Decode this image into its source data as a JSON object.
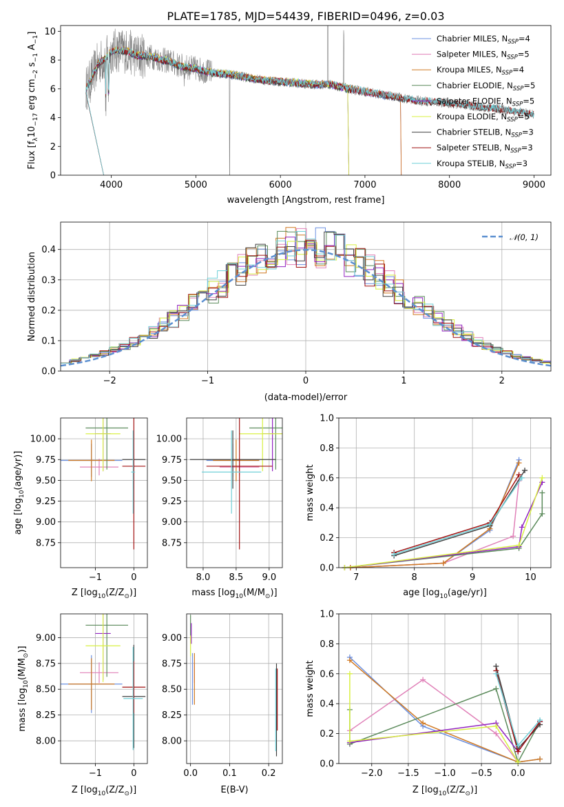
{
  "figure_title": "PLATE=1785, MJD=54439, FIBERID=0496, z=0.03",
  "colors": {
    "Chabrier MILES": "#6a8fe0",
    "Salpeter MILES": "#e080b8",
    "Kroupa MILES": "#d07820",
    "Chabrier ELODIE": "#5a8a5a",
    "Salpeter ELODIE": "#9020c0",
    "Kroupa ELODIE": "#d8f040",
    "Chabrier STELIB": "#404040",
    "Salpeter STELIB": "#a01010",
    "Kroupa STELIB": "#70d0d8",
    "data": "#808080",
    "gaussian": "#5b8fd0"
  },
  "chart_data": [
    {
      "id": "spectrum",
      "type": "line",
      "title": "PLATE=1785, MJD=54439, FIBERID=0496, z=0.03",
      "xlabel": "wavelength [Angstrom, rest frame]",
      "ylabel_parts": [
        "Flux [f",
        "λ",
        "10",
        "−17",
        " erg cm",
        "−2",
        " s",
        "−1",
        " A",
        "−1",
        "]"
      ],
      "xlim": [
        3400,
        9200
      ],
      "ylim": [
        0,
        10.4
      ],
      "xticks": [
        4000,
        5000,
        6000,
        7000,
        8000,
        9000
      ],
      "xtick_labels": [
        "4000",
        "5000",
        "6000",
        "7000",
        "8000",
        "9000"
      ],
      "yticks": [
        0,
        2,
        4,
        6,
        8,
        10
      ],
      "ytick_labels": [
        "0",
        "2",
        "4",
        "6",
        "8",
        "10"
      ],
      "grid": false,
      "legend_position": "upper right",
      "legend": [
        {
          "name": "Chabrier MILES",
          "nssp": "4",
          "sub": "SSP"
        },
        {
          "name": "Salpeter MILES",
          "nssp": "5",
          "sub": "SSP"
        },
        {
          "name": "Kroupa MILES",
          "nssp": "4",
          "sub": "SSP"
        },
        {
          "name": "Chabrier ELODIE",
          "nssp": "5",
          "sub": "SSP"
        },
        {
          "name": "Salpeter ELODIE",
          "nssp": "5",
          "sub": "SSP"
        },
        {
          "name": "Kroupa ELODIE",
          "nssp": "5",
          "sub": "SSP"
        },
        {
          "name": "Chabrier STELIB",
          "nssp": "3",
          "sub": "SSP"
        },
        {
          "name": "Salpeter STELIB",
          "nssp": "3",
          "sub": "SSP"
        },
        {
          "name": "Kroupa STELIB",
          "nssp": "3",
          "sub": "SSP"
        }
      ],
      "continuum": {
        "x": [
          3700,
          3750,
          3800,
          3850,
          3900,
          3950,
          4000,
          4100,
          4200,
          4300,
          4400,
          4500,
          4600,
          4700,
          4800,
          4900,
          5000,
          5200,
          5400,
          5600,
          5800,
          6000,
          6200,
          6400,
          6600,
          6800,
          7000,
          7200,
          7400,
          7600,
          7800,
          8000,
          8200,
          8400,
          8600,
          8800,
          9000
        ],
        "y": [
          6.0,
          6.5,
          7.2,
          7.8,
          8.0,
          8.2,
          8.6,
          8.7,
          8.6,
          8.3,
          8.3,
          8.2,
          8.0,
          7.9,
          7.6,
          7.5,
          7.4,
          7.1,
          7.0,
          6.8,
          6.6,
          6.5,
          6.4,
          6.3,
          6.3,
          6.0,
          5.8,
          5.6,
          5.4,
          5.2,
          5.1,
          5.0,
          4.9,
          4.7,
          4.6,
          4.4,
          4.2
        ]
      },
      "model_ends": {
        "MILES_end": 7420,
        "ELODIE_end": 6800,
        "STELIB_end": 9000,
        "ELODIE_start": 3700,
        "STELIB_start": 3700
      }
    },
    {
      "id": "residual_hist",
      "type": "bar",
      "xlabel": "(data-model)/error",
      "ylabel": "Normed distribution",
      "xlim": [
        -2.5,
        2.5
      ],
      "ylim": [
        0,
        0.49
      ],
      "xticks": [
        -2,
        -1,
        0,
        1,
        2
      ],
      "xtick_labels": [
        "−2",
        "−1",
        "0",
        "1",
        "2"
      ],
      "yticks": [
        0.0,
        0.1,
        0.2,
        0.3,
        0.4
      ],
      "ytick_labels": [
        "0.0",
        "0.1",
        "0.2",
        "0.3",
        "0.4"
      ],
      "grid": true,
      "legend_position": "upper right",
      "legend_label": "𝒩(0, 1)",
      "bin_width": 0.1,
      "bin_start": -2.5,
      "series": [
        {
          "name": "Chabrier MILES",
          "offset": 0.0
        },
        {
          "name": "Salpeter MILES",
          "offset": 0.03
        },
        {
          "name": "Kroupa MILES",
          "offset": -0.02
        },
        {
          "name": "Chabrier ELODIE",
          "offset": 0.05
        },
        {
          "name": "Salpeter ELODIE",
          "offset": -0.04
        },
        {
          "name": "Kroupa ELODIE",
          "offset": 0.07
        },
        {
          "name": "Chabrier STELIB",
          "offset": -0.06
        },
        {
          "name": "Salpeter STELIB",
          "offset": 0.02
        },
        {
          "name": "Kroupa STELIB",
          "offset": -0.01
        }
      ]
    },
    {
      "id": "age_vs_Z",
      "type": "scatter",
      "xlabel_parts": [
        "Z [log",
        "10",
        "(Z/Z",
        "⊙",
        ")]"
      ],
      "ylabel_parts": [
        "age  [log",
        "10",
        "(age/yr)]"
      ],
      "xlim": [
        -1.9,
        0.35
      ],
      "ylim": [
        8.45,
        10.25
      ],
      "xticks": [
        -1,
        0
      ],
      "xtick_labels": [
        "−1",
        "0"
      ],
      "yticks": [
        8.75,
        9.0,
        9.25,
        9.5,
        9.75,
        10.0
      ],
      "ytick_labels": [
        "8.75",
        "9.00",
        "9.25",
        "9.50",
        "9.75",
        "10.00"
      ],
      "grid": true,
      "points": [
        {
          "name": "Chabrier MILES",
          "x": -1.1,
          "xerr": 0.8,
          "y": 9.74,
          "yerr": 0.2
        },
        {
          "name": "Salpeter MILES",
          "x": -0.9,
          "xerr": 0.5,
          "y": 9.66,
          "yerr": 0.1
        },
        {
          "name": "Kroupa MILES",
          "x": -1.1,
          "xerr": 0.6,
          "y": 9.74,
          "yerr": 0.25
        },
        {
          "name": "Chabrier ELODIE",
          "x": -0.7,
          "xerr": 0.55,
          "y": 10.13,
          "yerr": 0.5
        },
        {
          "name": "Salpeter ELODIE",
          "x": -0.8,
          "xerr": 0.2,
          "y": 10.06,
          "yerr": 0.45
        },
        {
          "name": "Kroupa ELODIE",
          "x": -0.8,
          "xerr": 0.45,
          "y": 10.06,
          "yerr": 0.45
        },
        {
          "name": "Chabrier STELIB",
          "x": 0.0,
          "xerr": 0.3,
          "y": 9.75,
          "yerr": 0.35
        },
        {
          "name": "Salpeter STELIB",
          "x": 0.0,
          "xerr": 0.3,
          "y": 9.67,
          "yerr": 1.0
        },
        {
          "name": "Kroupa STELIB",
          "x": -0.02,
          "xerr": 0.05,
          "y": 9.6,
          "yerr": 0.5
        }
      ]
    },
    {
      "id": "age_vs_mass",
      "type": "scatter",
      "xlabel_parts": [
        "mass [log",
        "10",
        "(M/M",
        "⊙",
        ")]"
      ],
      "xlim": [
        7.75,
        9.2
      ],
      "ylim": [
        8.45,
        10.25
      ],
      "xticks": [
        8.0,
        8.5,
        9.0
      ],
      "xtick_labels": [
        "8.0",
        "8.5",
        "9.0"
      ],
      "yticks": [
        8.75,
        9.0,
        9.25,
        9.5,
        9.75,
        10.0
      ],
      "ytick_labels": [
        "8.75",
        "9.00",
        "9.25",
        "9.50",
        "9.75",
        "10.00"
      ],
      "grid": true,
      "points": [
        {
          "name": "Chabrier MILES",
          "x": 8.45,
          "xerr": 0.4,
          "y": 9.74,
          "yerr": 0.2
        },
        {
          "name": "Salpeter MILES",
          "x": 8.55,
          "xerr": 0.3,
          "y": 9.66,
          "yerr": 0.1
        },
        {
          "name": "Kroupa MILES",
          "x": 8.5,
          "xerr": 0.35,
          "y": 9.74,
          "yerr": 0.25
        },
        {
          "name": "Chabrier ELODIE",
          "x": 9.1,
          "xerr": 0.4,
          "y": 10.13,
          "yerr": 0.5
        },
        {
          "name": "Salpeter ELODIE",
          "x": 9.05,
          "xerr": 0.15,
          "y": 10.06,
          "yerr": 0.45
        },
        {
          "name": "Kroupa ELODIE",
          "x": 8.9,
          "xerr": 0.35,
          "y": 10.06,
          "yerr": 0.45
        },
        {
          "name": "Chabrier STELIB",
          "x": 8.45,
          "xerr": 0.65,
          "y": 9.75,
          "yerr": 0.35
        },
        {
          "name": "Salpeter STELIB",
          "x": 8.55,
          "xerr": 0.5,
          "y": 9.67,
          "yerr": 1.0
        },
        {
          "name": "Kroupa STELIB",
          "x": 8.43,
          "xerr": 0.45,
          "y": 9.6,
          "yerr": 0.5
        }
      ]
    },
    {
      "id": "weight_vs_age",
      "type": "line",
      "xlabel_parts": [
        "age  [log",
        "10",
        "(age/yr)]"
      ],
      "ylabel": "mass weight",
      "xlim": [
        6.7,
        10.35
      ],
      "ylim": [
        0,
        1.0
      ],
      "xticks": [
        7,
        8,
        9,
        10
      ],
      "xtick_labels": [
        "7",
        "8",
        "9",
        "10"
      ],
      "yticks": [
        0.0,
        0.2,
        0.4,
        0.6,
        0.8,
        1.0
      ],
      "ytick_labels": [
        "0.0",
        "0.2",
        "0.4",
        "0.6",
        "0.8",
        "1.0"
      ],
      "grid": true,
      "series": [
        {
          "name": "Chabrier MILES",
          "x": [
            6.9,
            8.5,
            9.3,
            9.8
          ],
          "y": [
            0.0,
            0.03,
            0.25,
            0.72
          ]
        },
        {
          "name": "Salpeter MILES",
          "x": [
            6.9,
            8.5,
            9.7,
            9.8
          ],
          "y": [
            0.0,
            0.03,
            0.21,
            0.58
          ]
        },
        {
          "name": "Kroupa MILES",
          "x": [
            6.9,
            8.5,
            9.3,
            9.8
          ],
          "y": [
            0.0,
            0.03,
            0.26,
            0.7
          ]
        },
        {
          "name": "Chabrier ELODIE",
          "x": [
            6.8,
            9.8,
            10.2,
            10.2
          ],
          "y": [
            0.0,
            0.13,
            0.36,
            0.5
          ]
        },
        {
          "name": "Salpeter ELODIE",
          "x": [
            6.8,
            9.8,
            9.85,
            10.2
          ],
          "y": [
            0.0,
            0.14,
            0.27,
            0.57
          ]
        },
        {
          "name": "Kroupa ELODIE",
          "x": [
            6.8,
            9.8,
            10.2
          ],
          "y": [
            0.0,
            0.15,
            0.6
          ]
        },
        {
          "name": "Chabrier STELIB",
          "x": [
            7.65,
            9.3,
            9.9
          ],
          "y": [
            0.08,
            0.28,
            0.65
          ]
        },
        {
          "name": "Salpeter STELIB",
          "x": [
            7.65,
            9.3,
            9.8
          ],
          "y": [
            0.1,
            0.3,
            0.62
          ]
        },
        {
          "name": "Kroupa STELIB",
          "x": [
            7.65,
            9.3,
            9.85
          ],
          "y": [
            0.09,
            0.29,
            0.6
          ]
        }
      ]
    },
    {
      "id": "mass_vs_Z",
      "type": "scatter",
      "xlabel_parts": [
        "Z [log",
        "10",
        "(Z/Z",
        "⊙",
        ")]"
      ],
      "ylabel_parts": [
        "mass [log",
        "10",
        "(M/M",
        "⊙",
        ")]"
      ],
      "xlim": [
        -1.9,
        0.35
      ],
      "ylim": [
        7.78,
        9.23
      ],
      "xticks": [
        -1,
        0
      ],
      "xtick_labels": [
        "−1",
        "0"
      ],
      "yticks": [
        8.0,
        8.25,
        8.5,
        8.75,
        9.0
      ],
      "ytick_labels": [
        "8.00",
        "8.25",
        "8.50",
        "8.75",
        "9.00"
      ],
      "grid": true,
      "points": [
        {
          "name": "Chabrier MILES",
          "x": -1.1,
          "xerr": 0.8,
          "y": 8.55,
          "yerr": 0.28
        },
        {
          "name": "Salpeter MILES",
          "x": -0.9,
          "xerr": 0.5,
          "y": 8.66,
          "yerr": 0.1
        },
        {
          "name": "Kroupa MILES",
          "x": -1.1,
          "xerr": 0.6,
          "y": 8.55,
          "yerr": 0.25
        },
        {
          "name": "Chabrier ELODIE",
          "x": -0.7,
          "xerr": 0.55,
          "y": 9.12,
          "yerr": 0.5
        },
        {
          "name": "Salpeter ELODIE",
          "x": -0.8,
          "xerr": 0.2,
          "y": 9.04,
          "yerr": 0.45
        },
        {
          "name": "Kroupa ELODIE",
          "x": -0.8,
          "xerr": 0.45,
          "y": 8.92,
          "yerr": 0.35
        },
        {
          "name": "Chabrier STELIB",
          "x": 0.0,
          "xerr": 0.3,
          "y": 8.43,
          "yerr": 0.5
        },
        {
          "name": "Salpeter STELIB",
          "x": 0.0,
          "xerr": 0.3,
          "y": 8.52,
          "yerr": 0.25
        },
        {
          "name": "Kroupa STELIB",
          "x": -0.02,
          "xerr": 0.25,
          "y": 8.41,
          "yerr": 0.5
        }
      ]
    },
    {
      "id": "mass_vs_ebv",
      "type": "scatter",
      "xlabel": "E(B-V)",
      "xlim": [
        -0.01,
        0.235
      ],
      "ylim": [
        7.78,
        9.23
      ],
      "xticks": [
        0.0,
        0.1,
        0.2
      ],
      "xtick_labels": [
        "0.0",
        "0.1",
        "0.2"
      ],
      "yticks": [
        8.0,
        8.25,
        8.5,
        8.75,
        9.0
      ],
      "ytick_labels": [
        "8.00",
        "8.25",
        "8.50",
        "8.75",
        "9.00"
      ],
      "grid": true,
      "points": [
        {
          "name": "Chabrier MILES",
          "x": 0.005,
          "y": 8.6,
          "yerr": 0.25
        },
        {
          "name": "Salpeter MILES",
          "x": 0.01,
          "y": 8.66,
          "yerr": 0.1
        },
        {
          "name": "Kroupa MILES",
          "x": 0.01,
          "y": 8.6,
          "yerr": 0.25
        },
        {
          "name": "Chabrier ELODIE",
          "x": 0.0,
          "y": 9.12,
          "yerr": 0.1
        },
        {
          "name": "Salpeter ELODIE",
          "x": 0.002,
          "y": 9.04,
          "yerr": 0.1
        },
        {
          "name": "Kroupa ELODIE",
          "x": 0.0,
          "y": 8.92,
          "yerr": 0.1
        },
        {
          "name": "Chabrier STELIB",
          "x": 0.22,
          "y": 8.3,
          "yerr": 0.45
        },
        {
          "name": "Salpeter STELIB",
          "x": 0.222,
          "y": 8.4,
          "yerr": 0.3
        },
        {
          "name": "Kroupa STELIB",
          "x": 0.218,
          "y": 8.3,
          "yerr": 0.4
        }
      ]
    },
    {
      "id": "weight_vs_Z",
      "type": "line",
      "xlabel_parts": [
        "Z [log",
        "10",
        "(Z/Z",
        "⊙",
        ")]"
      ],
      "ylabel": "mass weight",
      "xlim": [
        -2.45,
        0.45
      ],
      "ylim": [
        0,
        1.0
      ],
      "xticks": [
        -2.0,
        -1.5,
        -1.0,
        -0.5,
        0.0
      ],
      "xtick_labels": [
        "−2.0",
        "−1.5",
        "−1.0",
        "−0.5",
        "0.0"
      ],
      "yticks": [
        0.0,
        0.2,
        0.4,
        0.6,
        0.8,
        1.0
      ],
      "ytick_labels": [
        "0.0",
        "0.2",
        "0.4",
        "0.6",
        "0.8",
        "1.0"
      ],
      "grid": true,
      "series": [
        {
          "name": "Chabrier MILES",
          "x": [
            -2.3,
            -1.3,
            0.0,
            0.3
          ],
          "y": [
            0.71,
            0.25,
            0.01,
            0.03
          ]
        },
        {
          "name": "Salpeter MILES",
          "x": [
            -2.3,
            -1.3,
            -0.3,
            0.0
          ],
          "y": [
            0.22,
            0.56,
            0.2,
            0.01
          ]
        },
        {
          "name": "Kroupa MILES",
          "x": [
            -2.3,
            -1.3,
            0.0,
            0.3
          ],
          "y": [
            0.69,
            0.27,
            0.01,
            0.03
          ]
        },
        {
          "name": "Chabrier ELODIE",
          "x": [
            -2.3,
            -2.3,
            -0.3,
            0.0,
            0.3
          ],
          "y": [
            0.36,
            0.13,
            0.5,
            0.01,
            0.28
          ]
        },
        {
          "name": "Salpeter ELODIE",
          "x": [
            -2.3,
            -0.3,
            0.0,
            0.3
          ],
          "y": [
            0.14,
            0.27,
            0.08,
            0.28
          ]
        },
        {
          "name": "Kroupa ELODIE",
          "x": [
            -2.3,
            -2.3,
            -0.3,
            0.0
          ],
          "y": [
            0.6,
            0.15,
            0.25,
            0.01
          ]
        },
        {
          "name": "Chabrier STELIB",
          "x": [
            -0.3,
            0.0,
            0.3
          ],
          "y": [
            0.65,
            0.1,
            0.26
          ]
        },
        {
          "name": "Salpeter STELIB",
          "x": [
            -0.3,
            0.0,
            0.3
          ],
          "y": [
            0.62,
            0.08,
            0.28
          ]
        },
        {
          "name": "Kroupa STELIB",
          "x": [
            -0.3,
            0.0,
            0.3
          ],
          "y": [
            0.6,
            0.12,
            0.29
          ]
        }
      ]
    }
  ]
}
